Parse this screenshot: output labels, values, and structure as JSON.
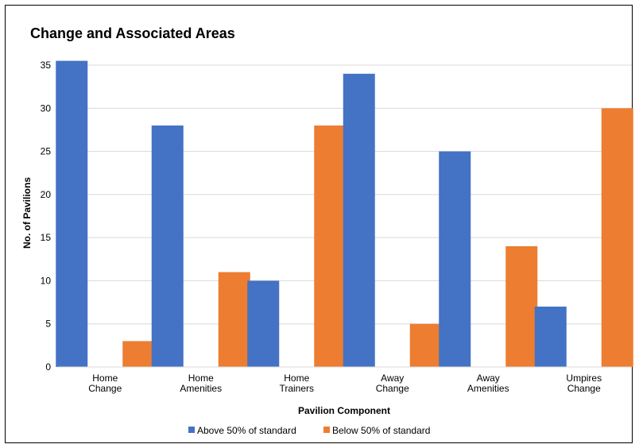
{
  "chart_data": {
    "type": "bar",
    "title": "Change and Associated Areas",
    "xlabel": "Pavilion Component",
    "ylabel": "No. of Pavilions",
    "ylim": [
      0,
      35
    ],
    "yticks": [
      0,
      5,
      10,
      15,
      20,
      25,
      30,
      35
    ],
    "grid": true,
    "legend_position": "bottom",
    "categories": [
      [
        "Home",
        "Change"
      ],
      [
        "Home",
        "Amenities"
      ],
      [
        "Home",
        "Trainers"
      ],
      [
        "Away",
        "Change"
      ],
      [
        "Away",
        "Amenities"
      ],
      [
        "Umpires",
        "Change"
      ]
    ],
    "series": [
      {
        "name": "Above 50% of standard",
        "color": "#4472C4",
        "values": [
          35.5,
          28,
          10,
          34,
          25,
          7
        ]
      },
      {
        "name": "Below 50% of standard",
        "color": "#ED7D31",
        "values": [
          3,
          11,
          28,
          5,
          14,
          30
        ]
      }
    ]
  }
}
